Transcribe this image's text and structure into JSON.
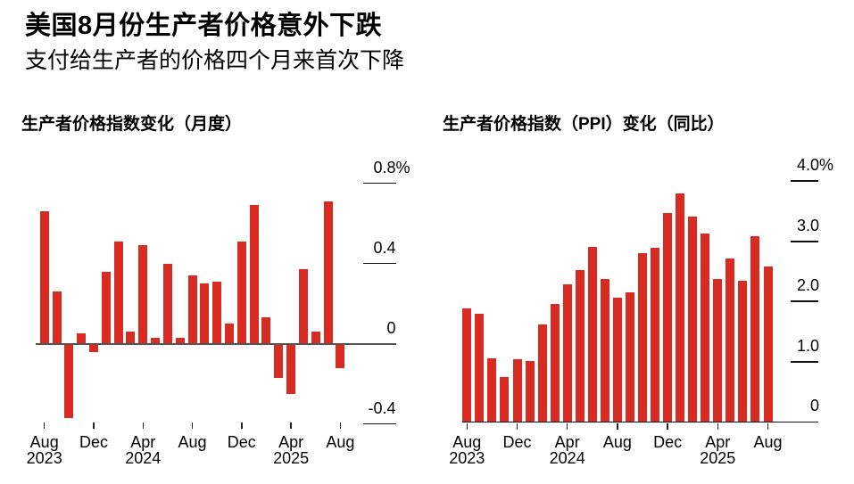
{
  "header": {
    "title": "美国8月份生产者价格意外下跌",
    "subtitle": "支付给生产者的价格四个月来首次下降"
  },
  "chart_data": [
    {
      "type": "bar",
      "title": "生产者价格指数变化（月度）",
      "unit": "%",
      "bar_color": "#d92b21",
      "legend": "none",
      "grid": "right-side short ticks, zero baseline across plot",
      "ylim": [
        -0.5,
        0.8
      ],
      "x": [
        "Aug 2023",
        "Sep 2023",
        "Oct 2023",
        "Nov 2023",
        "Dec 2023",
        "Jan 2024",
        "Feb 2024",
        "Mar 2024",
        "Apr 2024",
        "May 2024",
        "Jun 2024",
        "Jul 2024",
        "Aug 2024",
        "Sep 2024",
        "Oct 2024",
        "Nov 2024",
        "Dec 2024",
        "Jan 2025",
        "Feb 2025",
        "Mar 2025",
        "Apr 2025",
        "May 2025",
        "Jun 2025",
        "Jul 2025",
        "Aug 2025"
      ],
      "values": [
        0.66,
        0.26,
        -0.37,
        0.05,
        -0.04,
        0.36,
        0.51,
        0.06,
        0.49,
        0.03,
        0.4,
        0.03,
        0.34,
        0.3,
        0.31,
        0.1,
        0.51,
        0.69,
        0.13,
        -0.17,
        -0.25,
        0.37,
        0.06,
        0.71,
        -0.12
      ],
      "y_ticks": [
        {
          "label": "0.8%",
          "value": 0.8
        },
        {
          "label": "0.4",
          "value": 0.4
        },
        {
          "label": "0",
          "value": 0
        },
        {
          "label": "-0.4",
          "value": -0.4
        }
      ],
      "x_tick_labels": [
        {
          "label": "Aug",
          "month_index": 0,
          "year": "2023"
        },
        {
          "label": "Dec",
          "month_index": 4
        },
        {
          "label": "Apr",
          "month_index": 8,
          "year": "2024"
        },
        {
          "label": "Aug",
          "month_index": 12
        },
        {
          "label": "Dec",
          "month_index": 16
        },
        {
          "label": "Apr",
          "month_index": 20,
          "year": "2025"
        },
        {
          "label": "Aug",
          "month_index": 24
        }
      ]
    },
    {
      "type": "bar",
      "title": "生产者价格指数（PPI）变化（同比）",
      "unit": "%",
      "bar_color": "#d92b21",
      "legend": "none",
      "grid": "right-side short ticks, zero baseline at bottom",
      "ylim": [
        0,
        4.0
      ],
      "x": [
        "Aug 2023",
        "Sep 2023",
        "Oct 2023",
        "Nov 2023",
        "Dec 2023",
        "Jan 2024",
        "Feb 2024",
        "Mar 2024",
        "Apr 2024",
        "May 2024",
        "Jun 2024",
        "Jul 2024",
        "Aug 2024",
        "Sep 2024",
        "Oct 2024",
        "Nov 2024",
        "Dec 2024",
        "Jan 2025",
        "Feb 2025",
        "Mar 2025",
        "Apr 2025",
        "May 2025",
        "Jun 2025",
        "Jul 2025",
        "Aug 2025"
      ],
      "values": [
        1.89,
        1.8,
        1.05,
        0.75,
        1.04,
        1.01,
        1.62,
        1.96,
        2.29,
        2.53,
        2.91,
        2.37,
        2.07,
        2.16,
        2.81,
        2.89,
        3.47,
        3.79,
        3.41,
        3.13,
        2.37,
        2.72,
        2.34,
        3.08,
        2.58
      ],
      "y_ticks": [
        {
          "label": "4.0%",
          "value": 4.0
        },
        {
          "label": "3.0",
          "value": 3.0
        },
        {
          "label": "2.0",
          "value": 2.0
        },
        {
          "label": "1.0",
          "value": 1.0
        },
        {
          "label": "0",
          "value": 0
        }
      ],
      "x_tick_labels": [
        {
          "label": "Aug",
          "month_index": 0,
          "year": "2023"
        },
        {
          "label": "Dec",
          "month_index": 4
        },
        {
          "label": "Apr",
          "month_index": 8,
          "year": "2024"
        },
        {
          "label": "Aug",
          "month_index": 12
        },
        {
          "label": "Dec",
          "month_index": 16
        },
        {
          "label": "Apr",
          "month_index": 20,
          "year": "2025"
        },
        {
          "label": "Aug",
          "month_index": 24
        }
      ]
    }
  ]
}
